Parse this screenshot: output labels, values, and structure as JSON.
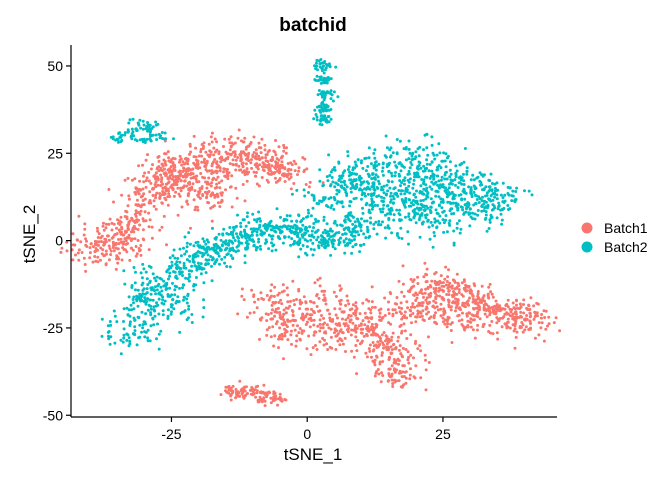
{
  "chart_data": {
    "type": "scatter",
    "title": "batchid",
    "xlabel": "tSNE_1",
    "ylabel": "tSNE_2",
    "xlim": [
      -43.5,
      46
    ],
    "ylim": [
      -50.5,
      56
    ],
    "x_ticks": [
      -25,
      0,
      25
    ],
    "y_ticks": [
      -50,
      -25,
      0,
      25,
      50
    ],
    "grid": false,
    "legend_position": "right",
    "series": [
      {
        "name": "Batch1",
        "color": "#F8766D",
        "clusters": [
          {
            "label": "upper-left arm",
            "points": [
              [
                -40,
                -2
              ],
              [
                -37,
                -3
              ],
              [
                -34,
                -2
              ],
              [
                -35,
                2
              ],
              [
                -33,
                4
              ],
              [
                -31,
                8
              ],
              [
                -29,
                14
              ],
              [
                -28,
                18
              ],
              [
                -26,
                15
              ],
              [
                -25,
                20
              ],
              [
                -24,
                17
              ],
              [
                -22,
                22
              ],
              [
                -21,
                18
              ],
              [
                -20,
                14
              ],
              [
                -18,
                24
              ],
              [
                -16,
                20
              ],
              [
                -17,
                13
              ],
              [
                -14,
                27
              ],
              [
                -12,
                22
              ],
              [
                -10,
                24
              ],
              [
                -8,
                22
              ],
              [
                -6,
                21
              ],
              [
                -3,
                19
              ]
            ],
            "spread": 2.6,
            "n": 40
          },
          {
            "label": "lower-right lobe",
            "points": [
              [
                -7,
                -17
              ],
              [
                -5,
                -22
              ],
              [
                -3,
                -27
              ],
              [
                0,
                -21
              ],
              [
                3,
                -17
              ],
              [
                4,
                -25
              ],
              [
                7,
                -28
              ],
              [
                9,
                -20
              ],
              [
                12,
                -24
              ],
              [
                13,
                -29
              ],
              [
                15,
                -31
              ],
              [
                16,
                -35
              ],
              [
                17,
                -38
              ],
              [
                18,
                -22
              ],
              [
                20,
                -15
              ],
              [
                22,
                -19
              ],
              [
                24,
                -12
              ],
              [
                26,
                -17
              ],
              [
                28,
                -23
              ],
              [
                29,
                -14
              ],
              [
                31,
                -18
              ],
              [
                33,
                -20
              ],
              [
                35,
                -19
              ],
              [
                37,
                -21
              ],
              [
                39,
                -22
              ],
              [
                41,
                -23
              ]
            ],
            "spread": 2.6,
            "n": 42
          },
          {
            "label": "bottom cluster",
            "points": [
              [
                -14,
                -43
              ],
              [
                -12,
                -44
              ],
              [
                -10,
                -43
              ],
              [
                -8,
                -45
              ],
              [
                -6,
                -45
              ]
            ],
            "spread": 1.0,
            "n": 22
          }
        ]
      },
      {
        "name": "Batch2",
        "color": "#00BFC4",
        "clusters": [
          {
            "label": "top cluster",
            "points": [
              [
                3,
                50
              ],
              [
                3,
                46
              ],
              [
                3,
                42
              ],
              [
                3,
                38
              ],
              [
                3,
                35
              ]
            ],
            "spread": 0.8,
            "n": 28
          },
          {
            "label": "upper-left cluster",
            "points": [
              [
                -35,
                29
              ],
              [
                -33,
                31
              ],
              [
                -31,
                33
              ],
              [
                -29,
                32
              ],
              [
                -27,
                30
              ],
              [
                -30,
                29
              ]
            ],
            "spread": 1.0,
            "n": 14
          },
          {
            "label": "diagonal band",
            "points": [
              [
                -33,
                -27
              ],
              [
                -31,
                -22
              ],
              [
                -29,
                -17
              ],
              [
                -29,
                -12
              ],
              [
                -26,
                -14
              ],
              [
                -25,
                -19
              ],
              [
                -23,
                -9
              ],
              [
                -21,
                -6
              ],
              [
                -19,
                -4
              ],
              [
                -17,
                -3
              ],
              [
                -15,
                -1
              ],
              [
                -12,
                1
              ],
              [
                -10,
                0
              ],
              [
                -8,
                2
              ],
              [
                -5,
                3
              ],
              [
                -3,
                4
              ],
              [
                -1,
                3
              ],
              [
                2,
                1
              ],
              [
                5,
                0
              ],
              [
                7,
                2
              ],
              [
                9,
                4
              ]
            ],
            "spread": 2.4,
            "n": 40
          },
          {
            "label": "upper-right lobe",
            "points": [
              [
                4,
                12
              ],
              [
                7,
                16
              ],
              [
                9,
                19
              ],
              [
                11,
                15
              ],
              [
                12,
                9
              ],
              [
                14,
                22
              ],
              [
                16,
                12
              ],
              [
                17,
                6
              ],
              [
                18,
                18
              ],
              [
                20,
                24
              ],
              [
                21,
                9
              ],
              [
                22,
                15
              ],
              [
                24,
                21
              ],
              [
                25,
                6
              ],
              [
                26,
                13
              ],
              [
                28,
                18
              ],
              [
                30,
                9
              ],
              [
                31,
                15
              ],
              [
                33,
                11
              ],
              [
                35,
                12
              ]
            ],
            "spread": 2.9,
            "n": 44
          }
        ]
      }
    ]
  }
}
